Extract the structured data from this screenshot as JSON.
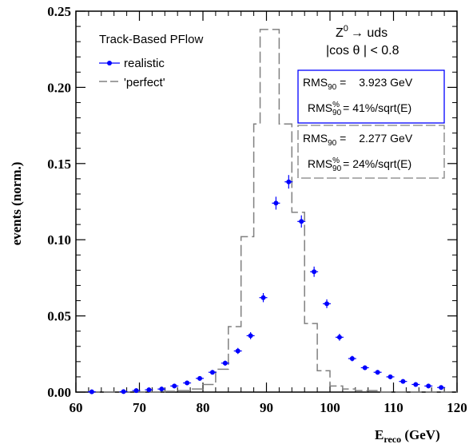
{
  "chart_data": {
    "type": "histogram",
    "xlabel": "E",
    "xlabel_sub": "reco",
    "xlabel_unit": " (GeV)",
    "ylabel": "events (norm.)",
    "xlim": [
      60,
      120
    ],
    "ylim": [
      0,
      0.25
    ],
    "x_ticks": [
      "60",
      "70",
      "80",
      "90",
      "100",
      "110",
      "120"
    ],
    "y_ticks": [
      "0.00",
      "0.05",
      "0.10",
      "0.15",
      "0.20",
      "0.25"
    ],
    "title": "Track-Based PFlow",
    "physics_label_line1": "Z",
    "physics_label_sup": "0",
    "physics_label_arrow": "→ uds",
    "physics_label_line2": "|cos θ | < 0.8",
    "legend": [
      {
        "name": "realistic",
        "style": "points",
        "color": "#0000ff"
      },
      {
        "name": "'perfect'",
        "style": "dashed-step",
        "color": "#808080"
      }
    ],
    "stat_boxes": [
      {
        "series": "realistic",
        "rms90_label": "RMS",
        "rms90_sub": "90",
        "rms90_value": "3.923 GeV",
        "rmspct_label": "RMS",
        "rmspct_sup": "%",
        "rmspct_sub": "90",
        "rmspct_value": "= 41%/sqrt(E)",
        "border": "#0000ff"
      },
      {
        "series": "'perfect'",
        "rms90_label": "RMS",
        "rms90_sub": "90",
        "rms90_value": "2.277 GeV",
        "rmspct_label": "RMS",
        "rmspct_sup": "%",
        "rmspct_sub": "90",
        "rmspct_value": "= 24%/sqrt(E)",
        "border": "#808080"
      }
    ],
    "series": [
      {
        "name": "realistic",
        "x": [
          62.5,
          67.5,
          69.5,
          71.5,
          73.5,
          75.5,
          77.5,
          79.5,
          81.5,
          83.5,
          85.5,
          87.5,
          89.5,
          91.5,
          93.5,
          95.5,
          97.5,
          99.5,
          101.5,
          103.5,
          105.5,
          107.5,
          109.5,
          111.5,
          113.5,
          115.5,
          117.5
        ],
        "y": [
          0.0002,
          0.0003,
          0.001,
          0.0015,
          0.002,
          0.004,
          0.006,
          0.009,
          0.013,
          0.019,
          0.027,
          0.037,
          0.062,
          0.124,
          0.138,
          0.112,
          0.079,
          0.058,
          0.036,
          0.022,
          0.016,
          0.013,
          0.01,
          0.007,
          0.005,
          0.004,
          0.003
        ]
      },
      {
        "name": "'perfect'",
        "bin_edges": [
          62,
          64,
          66,
          68,
          70,
          72,
          74,
          76,
          78,
          80,
          82,
          84,
          86,
          88,
          89,
          90,
          92,
          94,
          96,
          98,
          100,
          102,
          104,
          106,
          108,
          110,
          112,
          114,
          116,
          118,
          120
        ],
        "values": [
          0,
          0,
          0,
          0,
          0,
          0,
          0.0005,
          0.001,
          0.002,
          0.005,
          0.015,
          0.043,
          0.102,
          0.176,
          0.238,
          0.238,
          0.176,
          0.118,
          0.045,
          0.014,
          0.004,
          0.002,
          0.001,
          0.001,
          0,
          0,
          0,
          0,
          0,
          0
        ]
      }
    ]
  }
}
